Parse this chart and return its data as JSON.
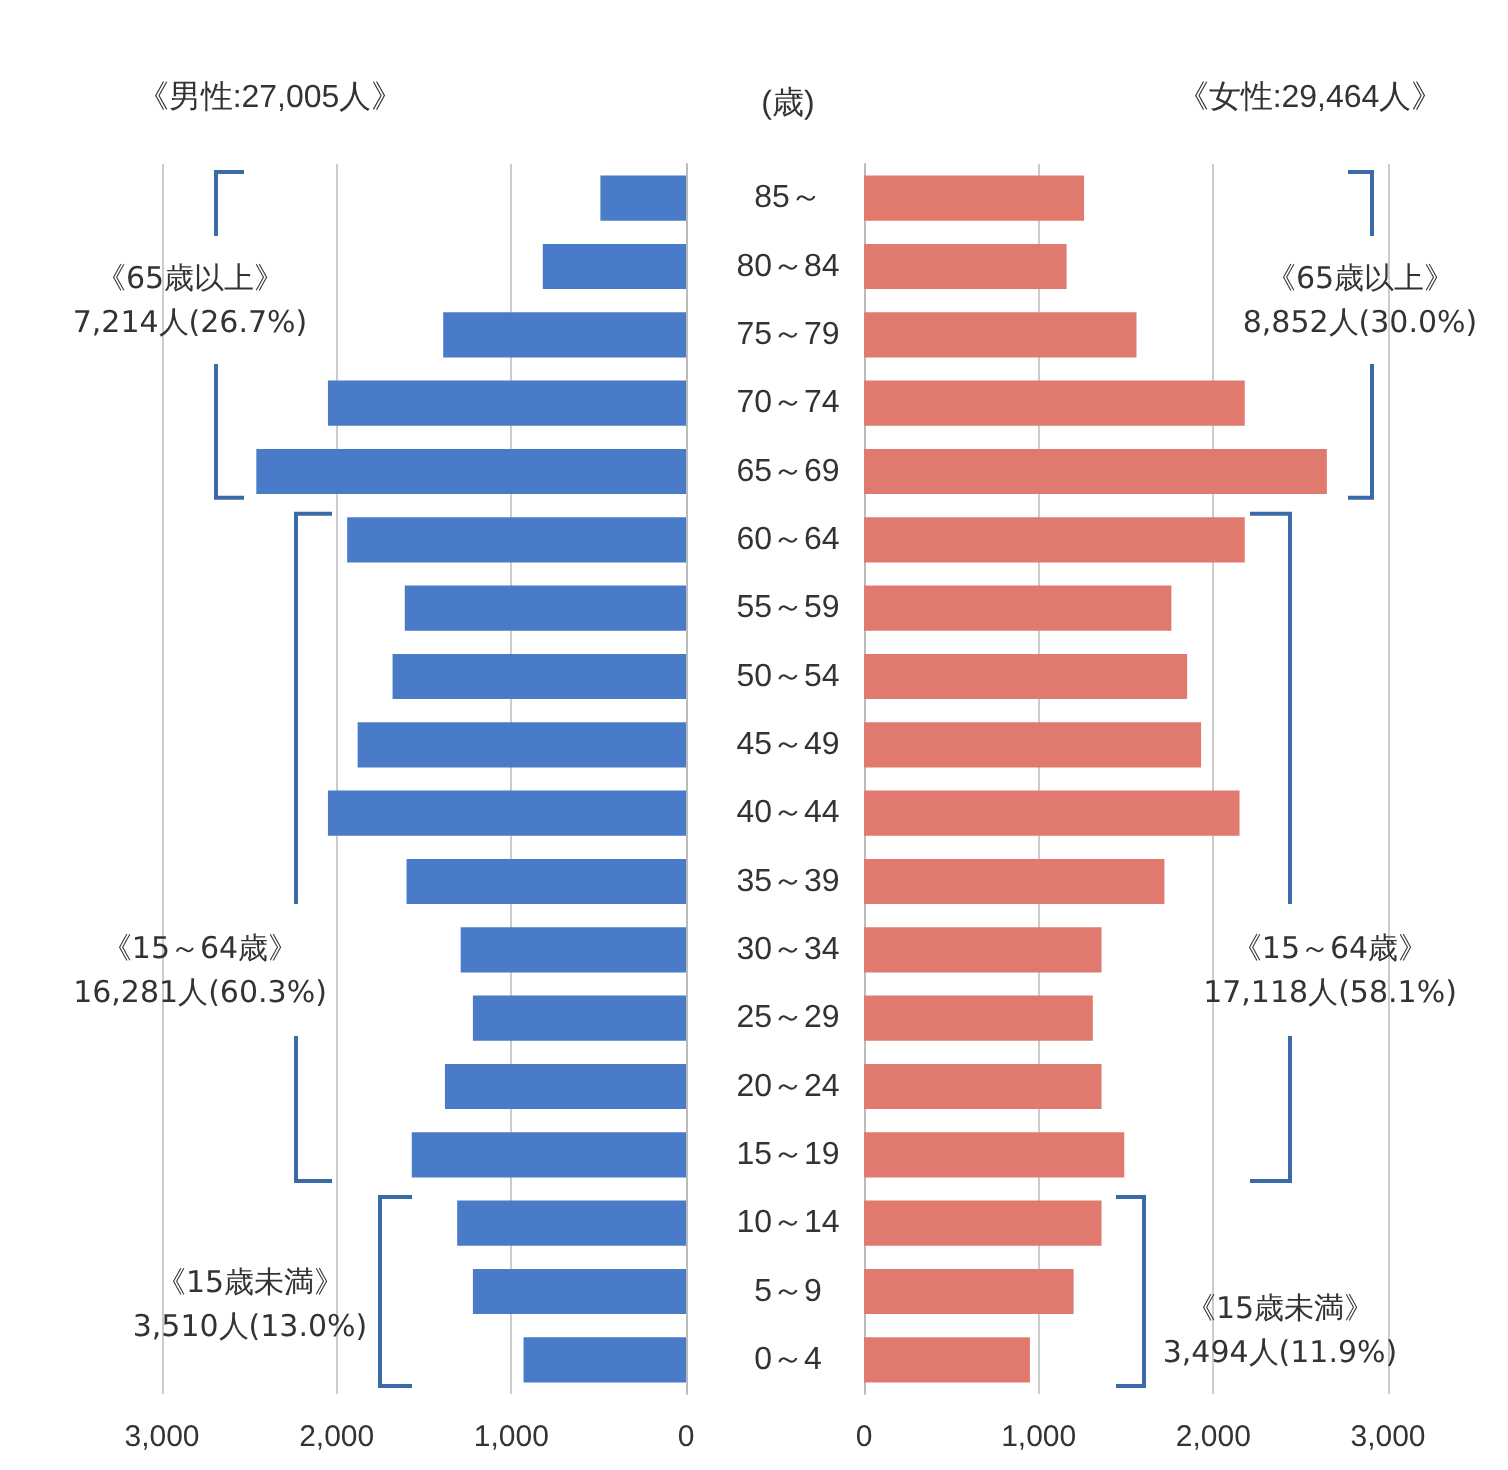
{
  "chart_data": [
    {
      "type": "bar",
      "orientation": "horizontal",
      "title": "《男性:27,005人》",
      "categories": [
        null,
        null,
        null,
        null,
        null,
        null,
        null,
        null,
        null,
        null,
        null,
        null,
        null,
        null,
        null,
        null,
        null,
        null
      ],
      "values": [
        490,
        820,
        1390,
        2050,
        2460,
        1940,
        1610,
        1680,
        1880,
        2050,
        1600,
        1290,
        1220,
        1380,
        1570,
        1310,
        1220,
        930
      ],
      "color": "#4a7bc8",
      "xlim": [
        3000,
        0
      ],
      "xticks": [
        {
          "value": 3000,
          "label": "3,000"
        },
        {
          "value": 2000,
          "label": "2,000"
        },
        {
          "value": 1000,
          "label": "1,000"
        },
        0
      ],
      "grid": "x",
      "tick_labels": "x",
      "annotations": [
        "《65歳以上》\n7,214人(26.7%)",
        "《15～64歳》\n16,281人(60.3%)",
        "《15歳未満》\n3,510人(13.0%)"
      ]
    },
    {
      "type": "bar",
      "orientation": "horizontal",
      "title": "《女性:29,464人》",
      "ylabel": "(歳)",
      "categories": [
        "85～",
        "80～84",
        "75～79",
        "70～74",
        "65～69",
        "60～64",
        "55～59",
        "50～54",
        "45～49",
        "40～44",
        "35～39",
        "30～34",
        "25～29",
        "20～24",
        "15～19",
        "10～14",
        "5～9",
        "0～4"
      ],
      "values": [
        1260,
        1160,
        1560,
        2180,
        2650,
        2180,
        1760,
        1850,
        1930,
        2150,
        1720,
        1360,
        1310,
        1360,
        1490,
        1360,
        1200,
        950
      ],
      "color": "#e07a6e",
      "xlim": [
        0,
        3000
      ],
      "xticks": [
        0,
        {
          "value": 1000,
          "label": "1,000"
        },
        {
          "value": 2000,
          "label": "2,000"
        },
        {
          "value": 3000,
          "label": "3,000"
        }
      ],
      "grid": "x",
      "annotations": [
        "《65歳以上》\n8,852人(30.0%)",
        "《15～64歳》\n17,118人(58.1%)",
        "《15歳未満》\n3,494人(11.9%)"
      ]
    }
  ]
}
